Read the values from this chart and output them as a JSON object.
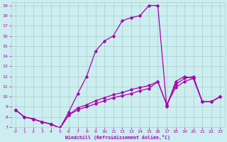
{
  "xlabel": "Windchill (Refroidissement éolien,°C)",
  "background_color": "#cceef0",
  "grid_color": "#aacccc",
  "line_color": "#aa00aa",
  "xlim": [
    -0.5,
    23.5
  ],
  "ylim": [
    7,
    19.3
  ],
  "xticks": [
    0,
    1,
    2,
    3,
    4,
    5,
    6,
    7,
    8,
    9,
    10,
    11,
    12,
    13,
    14,
    15,
    16,
    17,
    18,
    19,
    20,
    21,
    22,
    23
  ],
  "yticks": [
    7,
    8,
    9,
    10,
    11,
    12,
    13,
    14,
    15,
    16,
    17,
    18,
    19
  ],
  "line1_x": [
    0,
    1,
    2,
    3,
    4,
    5,
    6,
    7,
    8,
    9,
    10,
    11,
    12,
    13,
    14,
    15,
    16,
    17,
    18,
    19,
    20,
    21,
    22,
    23
  ],
  "line1_y": [
    8.7,
    8.0,
    7.8,
    7.5,
    7.3,
    6.9,
    8.5,
    10.3,
    12.0,
    14.5,
    15.5,
    16.0,
    17.5,
    17.8,
    18.0,
    19.0,
    19.0,
    9.0,
    11.5,
    12.0,
    11.8,
    9.5,
    9.5,
    10.0
  ],
  "line2_x": [
    0,
    1,
    2,
    3,
    4,
    5,
    6,
    7,
    8,
    9,
    10,
    11,
    12,
    13,
    14,
    15,
    16,
    17,
    18,
    19,
    20,
    21,
    22,
    23
  ],
  "line2_y": [
    8.7,
    8.0,
    7.8,
    7.5,
    7.3,
    6.9,
    8.2,
    8.7,
    9.0,
    9.3,
    9.6,
    9.9,
    10.1,
    10.3,
    10.6,
    10.8,
    11.5,
    9.2,
    10.9,
    11.5,
    11.8,
    9.5,
    9.5,
    10.0
  ],
  "line3_x": [
    0,
    1,
    2,
    3,
    4,
    5,
    6,
    7,
    8,
    9,
    10,
    11,
    12,
    13,
    14,
    15,
    16,
    17,
    18,
    19,
    20,
    21,
    22,
    23
  ],
  "line3_y": [
    8.7,
    8.0,
    7.8,
    7.5,
    7.3,
    6.9,
    8.2,
    8.9,
    9.2,
    9.6,
    9.9,
    10.2,
    10.4,
    10.7,
    10.9,
    11.1,
    11.5,
    9.2,
    11.2,
    11.8,
    12.0,
    9.5,
    9.5,
    10.0
  ]
}
